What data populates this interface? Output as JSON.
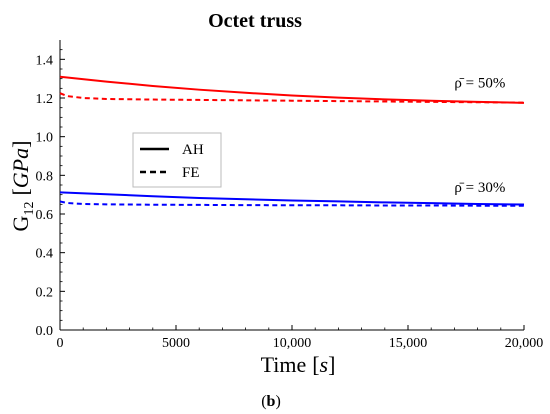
{
  "chart_data": {
    "type": "line",
    "title": "Octet truss",
    "xlabel": "Time",
    "xlabel_unit": "s",
    "ylabel": "G",
    "ylabel_sub": "12",
    "ylabel_unit": "GPa",
    "xlim": [
      0,
      20000
    ],
    "ylim": [
      0,
      1.5
    ],
    "x_ticks": [
      0,
      5000,
      10000,
      15000,
      20000
    ],
    "x_tick_labels": [
      "0",
      "5000",
      "10,000",
      "15,000",
      "20,000"
    ],
    "y_ticks": [
      0.0,
      0.2,
      0.4,
      0.6,
      0.8,
      1.0,
      1.2,
      1.4
    ],
    "y_tick_labels": [
      "0.0",
      "0.2",
      "0.4",
      "0.6",
      "0.8",
      "1.0",
      "1.2",
      "1.4"
    ],
    "grid": false,
    "legend": {
      "position": "center-left",
      "entries": [
        {
          "label": "AH",
          "style": "solid"
        },
        {
          "label": "FE",
          "style": "dashed"
        }
      ]
    },
    "annotations": [
      {
        "text": "ρ̄ = 50%",
        "x": 17000,
        "y": 1.255
      },
      {
        "text": "ρ̄ = 30%",
        "x": 17000,
        "y": 0.715
      }
    ],
    "series": [
      {
        "method": "AH",
        "density": "50%",
        "color": "#ff0000",
        "style": "solid",
        "x": [
          0,
          2000,
          4000,
          6000,
          8000,
          10000,
          12000,
          14000,
          16000,
          18000,
          20000
        ],
        "y": [
          1.31,
          1.285,
          1.262,
          1.243,
          1.227,
          1.213,
          1.202,
          1.193,
          1.186,
          1.18,
          1.175
        ]
      },
      {
        "method": "FE",
        "density": "50%",
        "color": "#ff0000",
        "style": "dashed",
        "x": [
          0,
          300,
          1000,
          2000,
          4000,
          6000,
          8000,
          10000,
          12000,
          14000,
          16000,
          18000,
          20000
        ],
        "y": [
          1.225,
          1.21,
          1.2,
          1.195,
          1.192,
          1.19,
          1.188,
          1.186,
          1.184,
          1.182,
          1.18,
          1.178,
          1.176
        ]
      },
      {
        "method": "AH",
        "density": "30%",
        "color": "#0000ff",
        "style": "solid",
        "x": [
          0,
          2000,
          4000,
          6000,
          8000,
          10000,
          12000,
          14000,
          16000,
          18000,
          20000
        ],
        "y": [
          0.712,
          0.702,
          0.692,
          0.683,
          0.676,
          0.67,
          0.665,
          0.66,
          0.656,
          0.652,
          0.649
        ]
      },
      {
        "method": "FE",
        "density": "30%",
        "color": "#0000ff",
        "style": "dashed",
        "x": [
          0,
          300,
          1000,
          2000,
          4000,
          6000,
          8000,
          10000,
          12000,
          14000,
          16000,
          18000,
          20000
        ],
        "y": [
          0.665,
          0.657,
          0.652,
          0.65,
          0.648,
          0.647,
          0.646,
          0.645,
          0.645,
          0.644,
          0.644,
          0.643,
          0.643
        ]
      }
    ]
  },
  "caption": {
    "open": "(",
    "letter": "b",
    "close": ")"
  }
}
